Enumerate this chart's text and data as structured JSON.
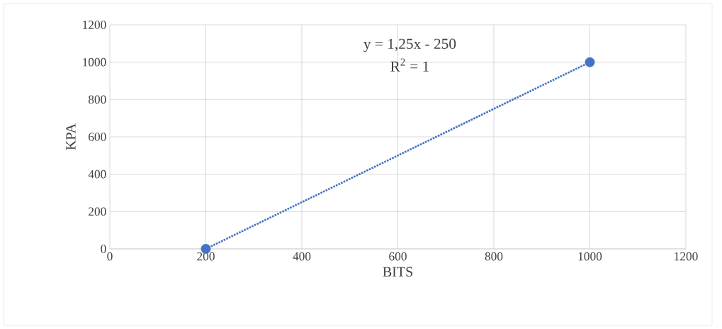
{
  "chart_data": {
    "type": "scatter",
    "xlabel": "BITS",
    "ylabel": "KPA",
    "annotations": [
      "y = 1,25x - 250",
      "R$^{2}$ = 1"
    ],
    "x": [
      200,
      1000
    ],
    "series": [
      {
        "color": "#4472c4",
        "marker": "circle",
        "values": [
          0,
          1000
        ]
      },
      {
        "type": "line",
        "color": "#4472c4",
        "line_style": "dotted",
        "marker": "none",
        "values": [
          0,
          1000
        ]
      }
    ],
    "xlim": [
      0,
      1200
    ],
    "ylim": [
      0,
      1200
    ],
    "xticks": [
      0,
      200,
      400,
      600,
      800,
      1000,
      1200
    ],
    "yticks": [
      0,
      200,
      400,
      600,
      800,
      1000,
      1200
    ],
    "grid": true
  }
}
